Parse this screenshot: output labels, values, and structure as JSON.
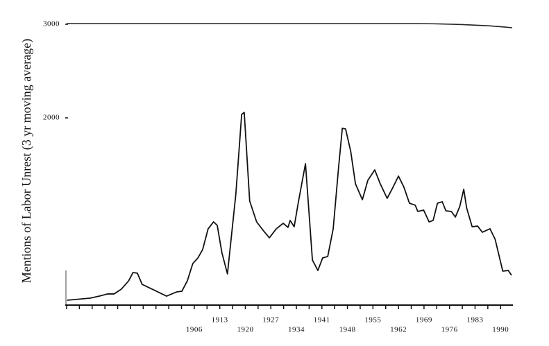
{
  "chart_data": {
    "type": "line",
    "y_label": "Mentions of Labor Unrest (3 yr moving average)",
    "xlim": [
      1871,
      1993
    ],
    "ylim": [
      0,
      3000
    ],
    "xticks": [
      1906,
      1913,
      1920,
      1927,
      1934,
      1941,
      1948,
      1955,
      1962,
      1969,
      1976,
      1983,
      1990
    ],
    "minor_xticks": [
      1871,
      1874.5,
      1878,
      1881.5,
      1885,
      1888.5,
      1892,
      1895.5,
      1899,
      1902.5,
      1909.5,
      1916.5,
      1923.5,
      1930.5,
      1937.5,
      1944.5,
      1951.5,
      1958.5,
      1965.5,
      1972.5,
      1979.5,
      1986.5
    ],
    "yticks": [
      2000,
      3000
    ],
    "color": "#111111",
    "x": [
      1871.1,
      1877.4,
      1880,
      1882.2,
      1884,
      1886,
      1888,
      1889.2,
      1890.4,
      1891.7,
      1898.4,
      1901.2,
      1902.6,
      1904.1,
      1905.6,
      1907,
      1908.3,
      1909.8,
      1911.3,
      1912.3,
      1913.6,
      1915.1,
      1917.4,
      1919,
      1919.7,
      1921.2,
      1923.1,
      1925,
      1926.6,
      1928.5,
      1930.4,
      1931.7,
      1932.3,
      1933.4,
      1934.6,
      1936.5,
      1938.4,
      1939.9,
      1941.2,
      1942.6,
      1944.1,
      1945.6,
      1946.6,
      1947.5,
      1948.9,
      1950.2,
      1952.1,
      1953.6,
      1955.5,
      1957,
      1958.9,
      1960.5,
      1962,
      1963.5,
      1965,
      1966.6,
      1967.3,
      1968.9,
      1970.4,
      1971.5,
      1972.7,
      1974,
      1975,
      1976.5,
      1977.6,
      1978.8,
      1979.9,
      1980.7,
      1982.2,
      1983.7,
      1985,
      1987.1,
      1988.5,
      1990.6,
      1992.1,
      1993
    ],
    "values": [
      52,
      74,
      96,
      119,
      119,
      170,
      259,
      348,
      341,
      222,
      96,
      141,
      148,
      259,
      444,
      504,
      593,
      815,
      889,
      852,
      556,
      333,
      1185,
      2037,
      2059,
      1111,
      889,
      793,
      719,
      815,
      874,
      830,
      904,
      837,
      1111,
      1511,
      481,
      370,
      504,
      519,
      815,
      1481,
      1889,
      1881,
      1644,
      1296,
      1126,
      1333,
      1444,
      1296,
      1141,
      1259,
      1378,
      1259,
      1089,
      1067,
      1000,
      1015,
      889,
      904,
      1089,
      1104,
      1007,
      1000,
      941,
      1052,
      1237,
      1037,
      837,
      844,
      778,
      815,
      704,
      363,
      370,
      319
    ]
  }
}
